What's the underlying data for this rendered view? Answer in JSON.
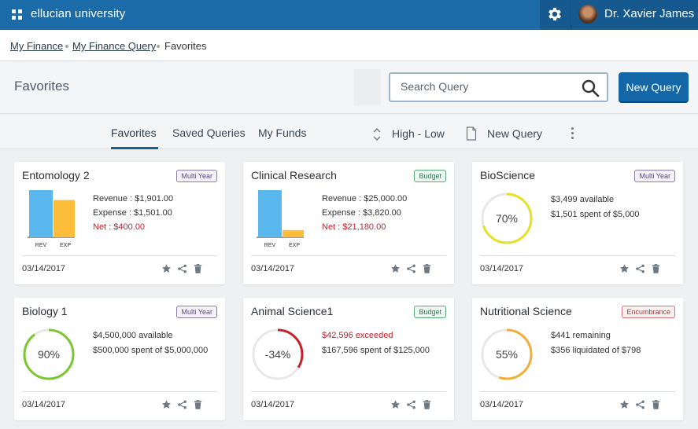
{
  "app": {
    "brand": "ellucian university",
    "user_name": "Dr. Xavier James"
  },
  "breadcrumb": {
    "items": [
      "My Finance",
      "My Finance Query",
      "Favorites"
    ]
  },
  "header": {
    "title": "Favorites",
    "search_placeholder": "Search Query",
    "new_query_button": "New Query"
  },
  "tabs": {
    "items": [
      "Favorites",
      "Saved Queries",
      "My Funds"
    ],
    "active": "Favorites",
    "sort_label": "High - Low",
    "new_query_label": "New Query"
  },
  "cards": [
    {
      "title": "Entomology 2",
      "badge": "Multi Year",
      "kind": "bars",
      "revenue": "Revenue : $1,901.00",
      "expense": "Expense : $1,501.00",
      "net": "Net : $400.00",
      "rev_value": 1901,
      "exp_value": 1501,
      "bar_labels": [
        "REV",
        "EXP"
      ],
      "date": "03/14/2017"
    },
    {
      "title": "Clinical Research",
      "badge": "Budget",
      "kind": "bars",
      "revenue": "Revenue : $25,000.00",
      "expense": "Expense : $3,820.00",
      "net": "Net : $21,180.00",
      "rev_value": 25000,
      "exp_value": 3820,
      "bar_labels": [
        "REV",
        "EXP"
      ],
      "date": "03/14/2017"
    },
    {
      "title": "BioScience",
      "badge": "Multi Year",
      "kind": "ring",
      "percent_label": "70%",
      "percent": 0.7,
      "line1": "$3,499 available",
      "line2": "$1,501 spent of $5,000",
      "date": "03/14/2017"
    },
    {
      "title": "Biology 1",
      "badge": "Multi Year",
      "kind": "ring",
      "percent_label": "90%",
      "percent": 0.9,
      "line1": "$4,500,000 available",
      "line2": "$500,000 spent of $5,000,000",
      "date": "03/14/2017"
    },
    {
      "title": "Animal Science1",
      "badge": "Budget",
      "kind": "ring",
      "percent_label": "-34%",
      "percent": 0.34,
      "line1": "$42,596 exceeded",
      "line2": "$167,596 spent of $125,000",
      "date": "03/14/2017"
    },
    {
      "title": "Nutritional Science",
      "badge": "Encumbrance",
      "kind": "ring",
      "percent_label": "55%",
      "percent": 0.55,
      "line1": "$441 remaining",
      "line2": "$356 liquidated of $798",
      "date": "03/14/2017"
    }
  ],
  "colors": {
    "header": "#1b6ba8",
    "rev_bar": "#5bb8ee",
    "exp_bar": "#fbbd3a",
    "ring_yellow": "#e6e02a",
    "ring_green": "#7cc631",
    "ring_red": "#c8202a",
    "ring_orange": "#f2ae3a",
    "net_red": "#c8202a"
  }
}
